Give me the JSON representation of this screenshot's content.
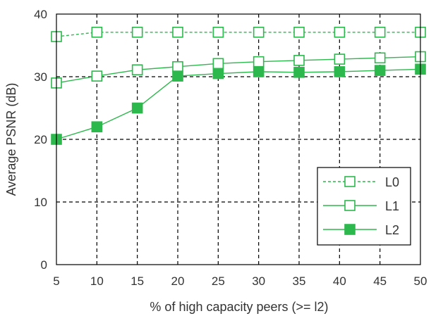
{
  "chart_data": {
    "type": "line",
    "title": "",
    "xlabel": "% of high capacity peers (>= l2)",
    "ylabel": "Average PSNR (dB)",
    "x": [
      5,
      10,
      15,
      20,
      25,
      30,
      35,
      40,
      45,
      50
    ],
    "xlim": [
      5,
      50
    ],
    "ylim": [
      0,
      40
    ],
    "yticks": [
      0,
      10,
      20,
      30,
      40
    ],
    "xticks": [
      5,
      10,
      15,
      20,
      25,
      30,
      35,
      40,
      45,
      50
    ],
    "grid": true,
    "legend_position": "bottom-right",
    "colors": {
      "series": "#2db84d",
      "grid": "#000000",
      "axis": "#000000"
    },
    "series": [
      {
        "name": "L0",
        "values": [
          36.4,
          37.1,
          37.1,
          37.1,
          37.1,
          37.1,
          37.1,
          37.1,
          37.1,
          37.1
        ],
        "line": "dashed",
        "marker": "open-square"
      },
      {
        "name": "L1",
        "values": [
          29.0,
          30.1,
          31.1,
          31.6,
          32.1,
          32.4,
          32.6,
          32.8,
          33.0,
          33.2
        ],
        "line": "solid",
        "marker": "open-square"
      },
      {
        "name": "L2",
        "values": [
          20.0,
          22.0,
          25.0,
          30.1,
          30.5,
          30.8,
          30.7,
          30.8,
          31.0,
          31.2
        ],
        "line": "solid",
        "marker": "filled-square"
      }
    ]
  }
}
